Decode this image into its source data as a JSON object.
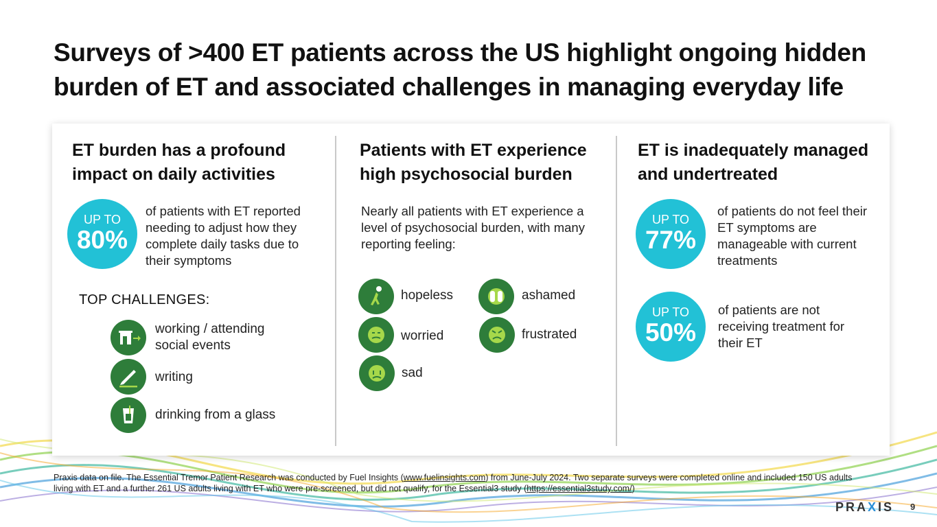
{
  "title": "Surveys of >400 ET patients across the US highlight ongoing hidden burden of ET and associated challenges in managing everyday life",
  "col1": {
    "heading": "ET burden has a profound impact on daily activities",
    "stat": {
      "upto": "UP TO",
      "value": "80%"
    },
    "stat_text": "of patients with ET reported needing to adjust how they complete daily tasks due to their symptoms",
    "challenges_heading": "TOP CHALLENGES:",
    "challenges": [
      {
        "label": "working / attending social events",
        "icon": "building-exit-icon"
      },
      {
        "label": "writing",
        "icon": "pen-icon"
      },
      {
        "label": "drinking from a glass",
        "icon": "glass-icon"
      }
    ]
  },
  "col2": {
    "heading": "Patients with ET experience high psychosocial burden",
    "intro": "Nearly all patients with ET experience a level of psychosocial burden, with many reporting feeling:",
    "feelings": [
      {
        "label": "hopeless",
        "icon": "hunched-person-icon"
      },
      {
        "label": "ashamed",
        "icon": "covered-face-icon"
      },
      {
        "label": "worried",
        "icon": "worried-face-icon"
      },
      {
        "label": "frustrated",
        "icon": "frustrated-face-icon"
      },
      {
        "label": "sad",
        "icon": "sad-face-icon"
      }
    ]
  },
  "col3": {
    "heading": "ET is inadequately managed and undertreated",
    "stats": [
      {
        "upto": "UP TO",
        "value": "77%",
        "text": "of patients do not feel their ET symptoms are manageable with current treatments"
      },
      {
        "upto": "UP TO",
        "value": "50%",
        "text": "of patients are not receiving treatment for their ET"
      }
    ]
  },
  "footnote": {
    "text_1": "Praxis data on file. The Essential Tremor Patient Research was conducted by Fuel Insights (",
    "link_1": "www.fuelinsights.com",
    "text_2": ") from June-July 2024. Two separate surveys were completed online and included 150 US adults living with ET and a further 261 US adults living with ET who were pre-screened, but did not qualify, for the Essential3 study (",
    "link_2": "https://essential3study.com/",
    "text_3": ")"
  },
  "logo": {
    "part1": "PRA",
    "x": "X",
    "part2": "IS"
  },
  "page_number": "9",
  "colors": {
    "accent_cyan": "#22c1d6",
    "icon_green": "#2e7d3a",
    "icon_detail": "#a6d84a"
  }
}
